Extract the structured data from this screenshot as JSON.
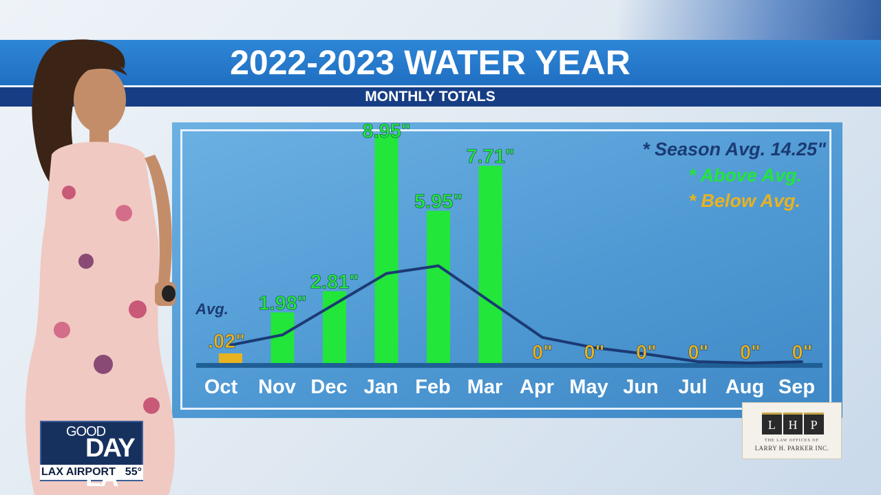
{
  "header": {
    "title": "2022-2023 WATER YEAR",
    "subtitle": "MONTHLY TOTALS"
  },
  "legend": {
    "season_avg": "* Season Avg. 14.25\"",
    "above_avg": "* Above Avg.",
    "below_avg": "* Below Avg."
  },
  "chart_data": {
    "type": "bar",
    "categories": [
      "Oct",
      "Nov",
      "Dec",
      "Jan",
      "Feb",
      "Mar",
      "Apr",
      "May",
      "Jun",
      "Jul",
      "Aug",
      "Sep"
    ],
    "series": [
      {
        "values": [
          0.02,
          1.98,
          2.81,
          8.95,
          5.95,
          7.71,
          0,
          0,
          0,
          0,
          0,
          0
        ],
        "labels": [
          ".02\"",
          "1.98\"",
          "2.81\"",
          "8.95\"",
          "5.95\"",
          "7.71\"",
          "0\"",
          "0\"",
          "0\"",
          "0\"",
          "0\"",
          "0\""
        ],
        "status": [
          "below",
          "above",
          "above",
          "above",
          "above",
          "above",
          "below",
          "below",
          "below",
          "below",
          "below",
          "below"
        ]
      },
      {
        "name": "Avg.",
        "type": "line",
        "values": [
          0.7,
          1.1,
          2.3,
          3.5,
          3.8,
          2.4,
          1.0,
          0.6,
          0.35,
          0.05,
          0.0,
          0.05
        ]
      }
    ],
    "ylim": [
      0,
      9.3
    ],
    "colors": {
      "above": "#22e63a",
      "below": "#e8b321",
      "avg_line": "#1b3a73"
    }
  },
  "branding": {
    "show_logo_top": "GOOD",
    "show_logo_main": "DAY LA",
    "location": "LAX AIRPORT",
    "temperature": "55°",
    "sponsor_initials": [
      "L",
      "H",
      "P"
    ],
    "sponsor_line1": "THE LAW OFFICES OF",
    "sponsor_line2": "LARRY H. PARKER INC."
  }
}
